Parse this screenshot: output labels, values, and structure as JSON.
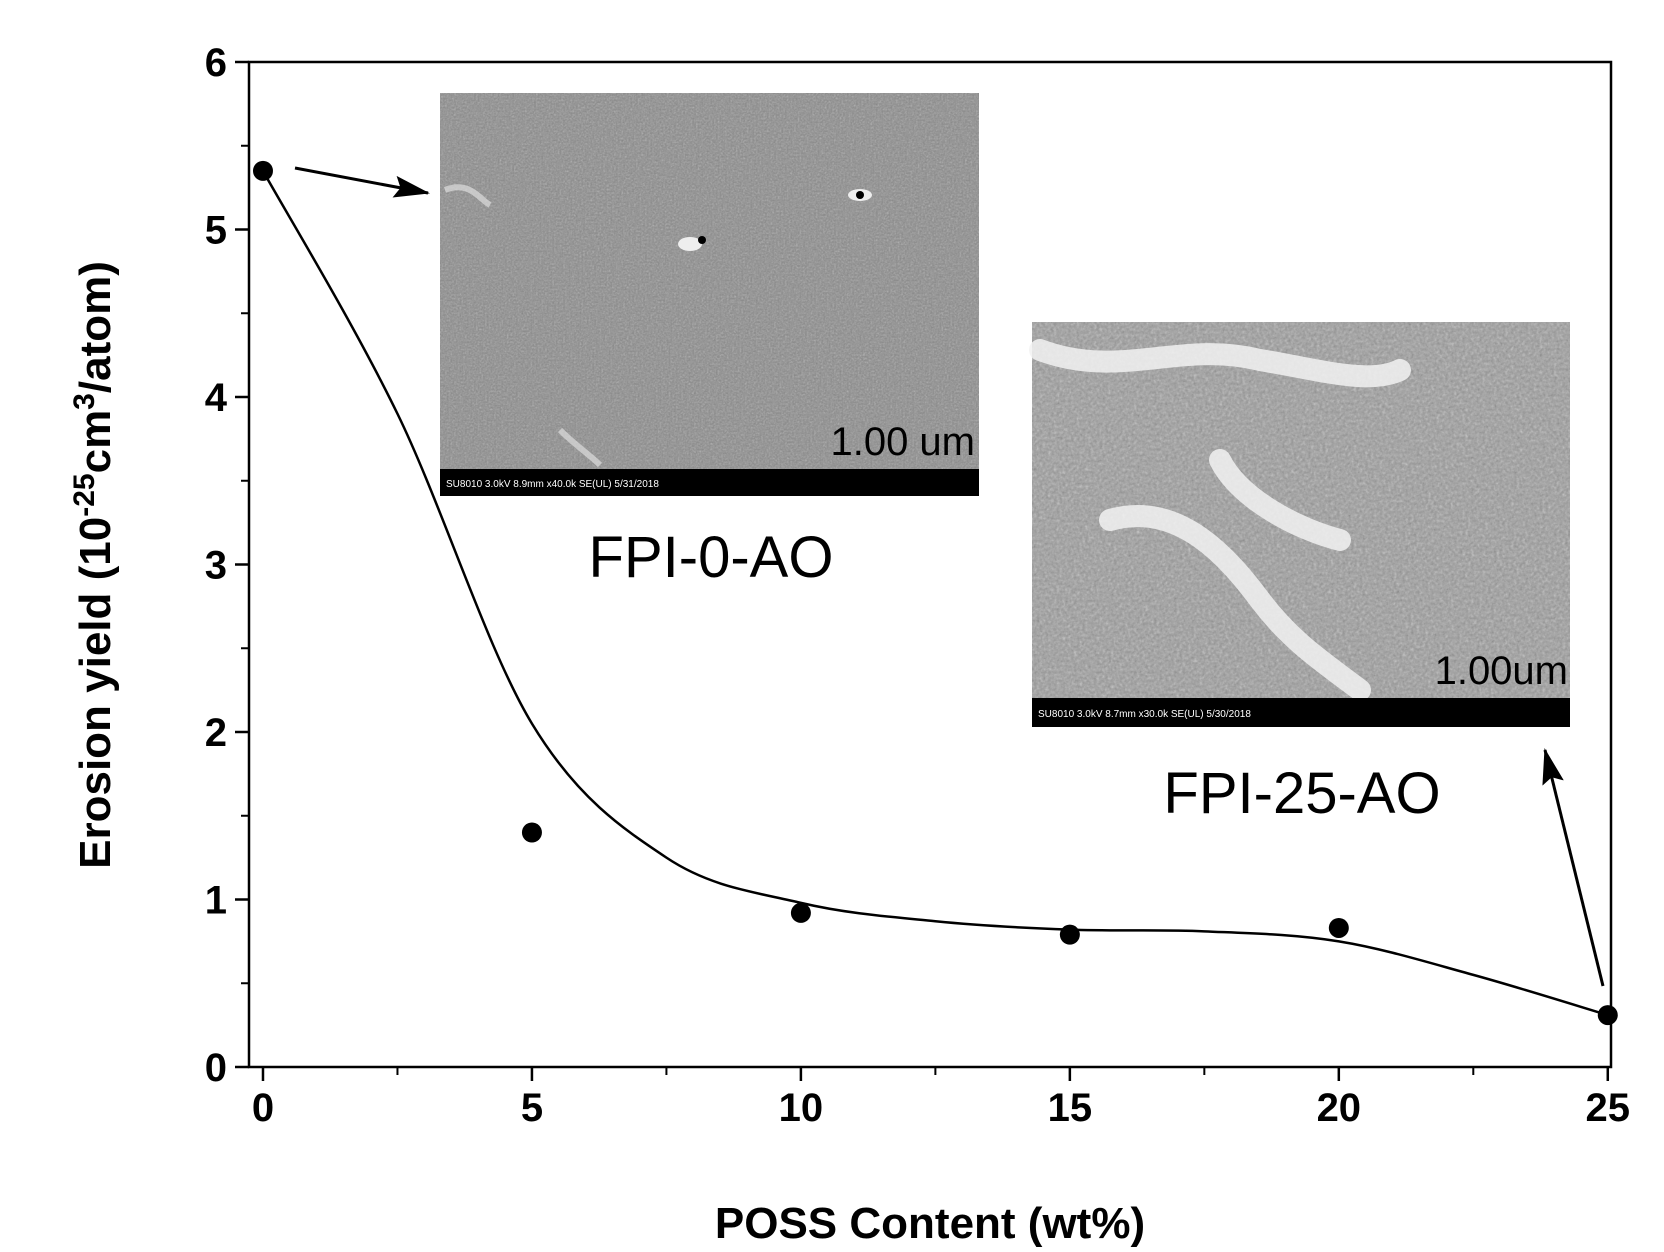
{
  "chart_data": {
    "type": "scatter",
    "xlabel": "POSS Content (wt%)",
    "ylabel_parts": [
      "Erosion yield (10",
      "-25",
      "cm",
      "3",
      "/atom)"
    ],
    "xlim": [
      -0.26,
      25.06
    ],
    "ylim": [
      0,
      6
    ],
    "xticks": [
      0,
      5,
      10,
      15,
      20,
      25
    ],
    "yticks": [
      0,
      1,
      2,
      3,
      4,
      5,
      6
    ],
    "xminorticks": [
      2.5,
      7.5,
      12.5,
      17.5,
      22.5
    ],
    "yminorticks": [
      0.5,
      1.5,
      2.5,
      3.5,
      4.5,
      5.5
    ],
    "series": [
      {
        "color": "#000000",
        "x": [
          0,
          5,
          10,
          15,
          20,
          25
        ],
        "values": [
          5.35,
          1.4,
          0.92,
          0.79,
          0.83,
          0.31
        ],
        "style": "markers"
      },
      {
        "color": "#000000",
        "x": [
          0,
          2.5,
          5,
          7.5,
          10,
          12.5,
          15,
          17.5,
          20,
          22.5,
          25
        ],
        "values": [
          5.35,
          3.9,
          2.05,
          1.25,
          0.98,
          0.87,
          0.82,
          0.81,
          0.75,
          0.55,
          0.31
        ],
        "style": "line"
      }
    ],
    "annotations": [
      {
        "text": "FPI-0-AO",
        "scale_bar": "1.00 um",
        "footer": "SU8010 3.0kV 8.9mm x40.0k SE(UL) 5/31/2018"
      },
      {
        "text": "FPI-25-AO",
        "scale_bar": "1.00um",
        "footer": "SU8010 3.0kV 8.7mm x30.0k SE(UL) 5/30/2018"
      }
    ]
  }
}
